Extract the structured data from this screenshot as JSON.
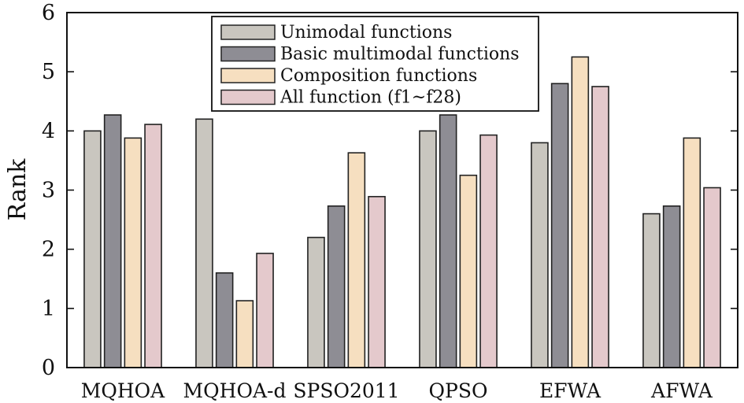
{
  "chart_data": {
    "type": "bar",
    "ylabel": "Rank",
    "ylim": [
      0,
      6
    ],
    "yticks": [
      "0",
      "1",
      "2",
      "3",
      "4",
      "5",
      "6"
    ],
    "categories": [
      "MQHOA",
      "MQHOA-d",
      "SPSO2011",
      "QPSO",
      "EFWA",
      "AFWA"
    ],
    "series": [
      {
        "name": "Unimodal functions",
        "color": "#c9c6bf",
        "values": [
          4.0,
          4.2,
          2.2,
          4.0,
          3.8,
          2.6
        ]
      },
      {
        "name": "Basic multimodal functions",
        "color": "#8e8d94",
        "values": [
          4.27,
          1.6,
          2.73,
          4.27,
          4.8,
          2.73
        ]
      },
      {
        "name": "Composition functions",
        "color": "#f6dfc0",
        "values": [
          3.88,
          1.13,
          3.63,
          3.25,
          5.25,
          3.88
        ]
      },
      {
        "name": "All function (f1~f28)",
        "color": "#e4c9cc",
        "values": [
          4.11,
          1.93,
          2.89,
          3.93,
          4.75,
          3.04
        ]
      }
    ],
    "legend_position": "top-center",
    "grid": false
  }
}
